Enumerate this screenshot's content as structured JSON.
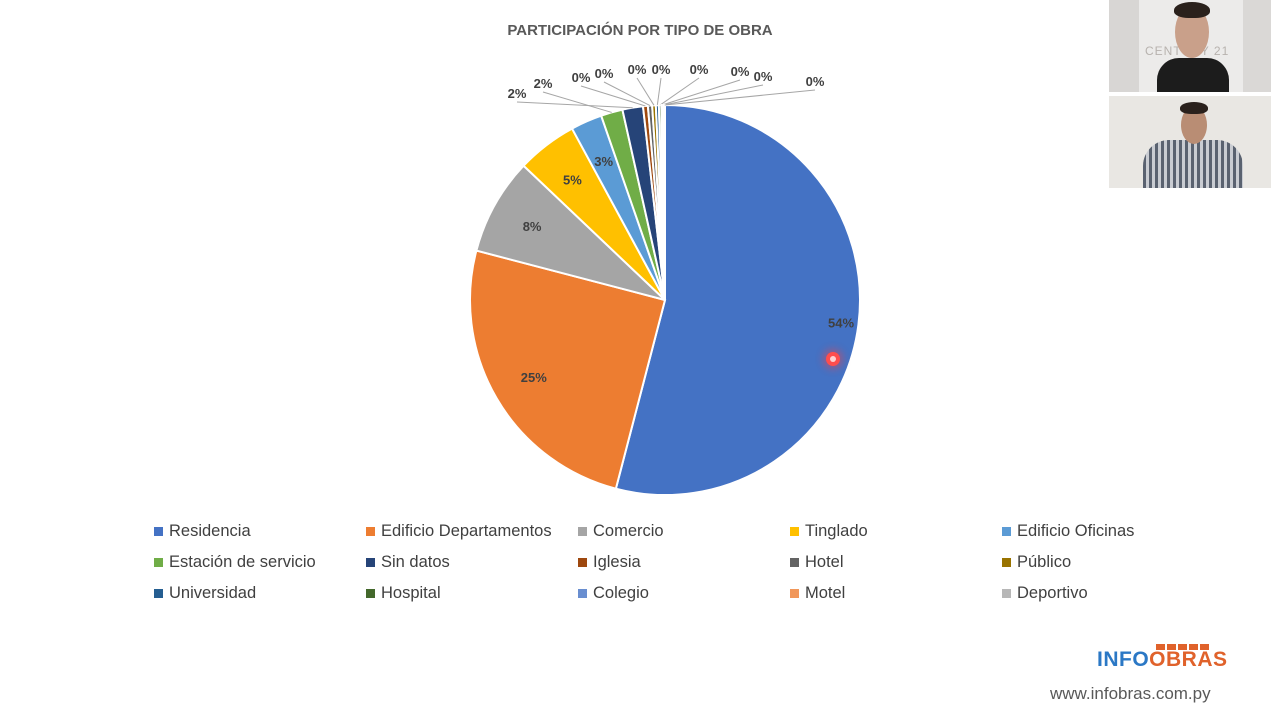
{
  "chart_data": {
    "type": "pie",
    "title": "PARTICIPACIÓN POR TIPO DE OBRA",
    "legend_position": "bottom",
    "unit": "%",
    "slices": [
      {
        "name": "Residencia",
        "value": 54,
        "label": "54%",
        "color": "#4472c4"
      },
      {
        "name": "Edificio Departamentos",
        "value": 25,
        "label": "25%",
        "color": "#ed7d31"
      },
      {
        "name": "Comercio",
        "value": 8,
        "label": "8%",
        "color": "#a5a5a5"
      },
      {
        "name": "Tinglado",
        "value": 5,
        "label": "5%",
        "color": "#ffc000"
      },
      {
        "name": "Edificio Oficinas",
        "value": 2.6,
        "label": "3%",
        "color": "#5b9bd5"
      },
      {
        "name": "Estación de servicio",
        "value": 1.8,
        "label": "2%",
        "color": "#70ad47"
      },
      {
        "name": "Sin datos",
        "value": 1.7,
        "label": "2%",
        "color": "#264478"
      },
      {
        "name": "Iglesia",
        "value": 0.4,
        "label": "0%",
        "color": "#9e480e"
      },
      {
        "name": "Hotel",
        "value": 0.35,
        "label": "0%",
        "color": "#636363"
      },
      {
        "name": "Público",
        "value": 0.3,
        "label": "0%",
        "color": "#997300"
      },
      {
        "name": "Universidad",
        "value": 0.25,
        "label": "0%",
        "color": "#255e91"
      },
      {
        "name": "Hospital",
        "value": 0.2,
        "label": "0%",
        "color": "#43682b"
      },
      {
        "name": "Colegio",
        "value": 0.15,
        "label": "0%",
        "color": "#698ed0"
      },
      {
        "name": "Motel",
        "value": 0.1,
        "label": "0%",
        "color": "#f1975a"
      },
      {
        "name": "Deportivo",
        "value": 0.05,
        "label": "0%",
        "color": "#b7b7b7"
      }
    ]
  },
  "video": {
    "top_overlay_text": "CENTURY 21"
  },
  "branding": {
    "logo_info": "INFO",
    "logo_obras": "OBRAS",
    "url": "www.infobras.com.py",
    "logo_info_color": "#2b78c5",
    "logo_obras_color": "#e0622b"
  }
}
